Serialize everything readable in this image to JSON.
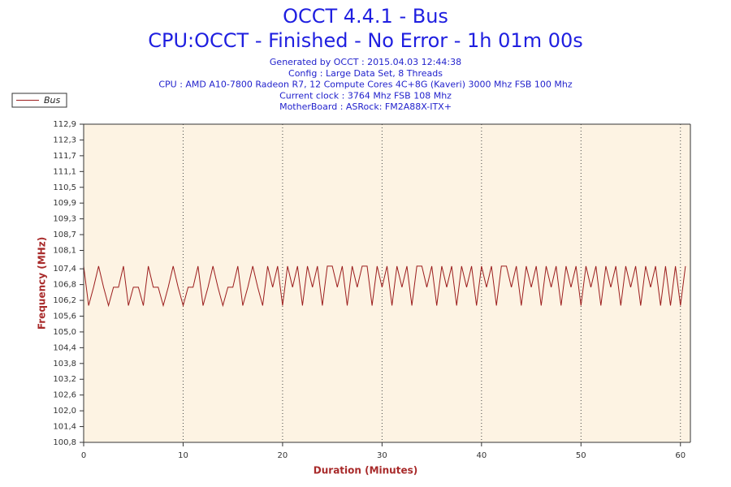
{
  "chart_data": {
    "type": "line",
    "title": "OCCT 4.4.1 - Bus",
    "subtitle": "CPU:OCCT - Finished - No Error - 1h 01m 00s",
    "info": [
      "Generated by OCCT : 2015.04.03 12:44:38",
      "Config : Large Data Set, 8 Threads",
      "CPU : AMD A10-7800 Radeon R7, 12 Compute Cores 4C+8G (Kaveri) 3000 Mhz FSB 100 Mhz",
      "Current clock : 3764 Mhz FSB 108 Mhz",
      "MotherBoard : ASRock: FM2A88X-ITX+"
    ],
    "x_label": "Duration (Minutes)",
    "y_label": "Frequency (MHz)",
    "xlim": [
      0,
      61
    ],
    "ylim": [
      100.8,
      112.9
    ],
    "xticks": [
      0,
      10,
      20,
      30,
      40,
      50,
      60
    ],
    "yticks": [
      {
        "value": 100.8,
        "label": "100,8"
      },
      {
        "value": 101.4,
        "label": "101,4"
      },
      {
        "value": 102.0,
        "label": "102,0"
      },
      {
        "value": 102.6,
        "label": "102,6"
      },
      {
        "value": 103.2,
        "label": "103,2"
      },
      {
        "value": 103.8,
        "label": "103,8"
      },
      {
        "value": 104.4,
        "label": "104,4"
      },
      {
        "value": 105.0,
        "label": "105,0"
      },
      {
        "value": 105.6,
        "label": "105,6"
      },
      {
        "value": 106.2,
        "label": "106,2"
      },
      {
        "value": 106.8,
        "label": "106,8"
      },
      {
        "value": 107.4,
        "label": "107,4"
      },
      {
        "value": 108.1,
        "label": "108,1"
      },
      {
        "value": 108.7,
        "label": "108,7"
      },
      {
        "value": 109.3,
        "label": "109,3"
      },
      {
        "value": 109.9,
        "label": "109,9"
      },
      {
        "value": 110.5,
        "label": "110,5"
      },
      {
        "value": 111.1,
        "label": "111,1"
      },
      {
        "value": 111.7,
        "label": "111,7"
      },
      {
        "value": 112.3,
        "label": "112,3"
      },
      {
        "value": 112.9,
        "label": "112,9"
      }
    ],
    "grid": true,
    "legend": "top-left",
    "x": [
      0,
      0.5,
      1,
      1.5,
      2,
      2.5,
      3,
      3.5,
      4,
      4.5,
      5,
      5.5,
      6,
      6.5,
      7,
      7.5,
      8,
      8.5,
      9,
      9.5,
      10,
      10.5,
      11,
      11.5,
      12,
      12.5,
      13,
      13.5,
      14,
      14.5,
      15,
      15.5,
      16,
      16.5,
      17,
      17.5,
      18,
      18.5,
      19,
      19.5,
      20,
      20.5,
      21,
      21.5,
      22,
      22.5,
      23,
      23.5,
      24,
      24.5,
      25,
      25.5,
      26,
      26.5,
      27,
      27.5,
      28,
      28.5,
      29,
      29.5,
      30,
      30.5,
      31,
      31.5,
      32,
      32.5,
      33,
      33.5,
      34,
      34.5,
      35,
      35.5,
      36,
      36.5,
      37,
      37.5,
      38,
      38.5,
      39,
      39.5,
      40,
      40.5,
      41,
      41.5,
      42,
      42.5,
      43,
      43.5,
      44,
      44.5,
      45,
      45.5,
      46,
      46.5,
      47,
      47.5,
      48,
      48.5,
      49,
      49.5,
      50,
      50.5,
      51,
      51.5,
      52,
      52.5,
      53,
      53.5,
      54,
      54.5,
      55,
      55.5,
      56,
      56.5,
      57,
      57.5,
      58,
      58.5,
      59,
      59.5,
      60,
      60.5
    ],
    "series": [
      {
        "name": "Bus",
        "color": "#9b1c1c",
        "values": [
          107.5,
          106.0,
          106.7,
          107.5,
          106.7,
          106.0,
          106.7,
          106.7,
          107.5,
          106.0,
          106.7,
          106.7,
          106.0,
          107.5,
          106.7,
          106.7,
          106.0,
          106.7,
          107.5,
          106.7,
          106.0,
          106.7,
          106.7,
          107.5,
          106.0,
          106.7,
          107.5,
          106.7,
          106.0,
          106.7,
          106.7,
          107.5,
          106.0,
          106.7,
          107.5,
          106.7,
          106.0,
          107.5,
          106.7,
          107.5,
          106.0,
          107.5,
          106.7,
          107.5,
          106.0,
          107.5,
          106.7,
          107.5,
          106.0,
          107.5,
          107.5,
          106.7,
          107.5,
          106.0,
          107.5,
          106.7,
          107.5,
          107.5,
          106.0,
          107.5,
          106.7,
          107.5,
          106.0,
          107.5,
          106.7,
          107.5,
          106.0,
          107.5,
          107.5,
          106.7,
          107.5,
          106.0,
          107.5,
          106.7,
          107.5,
          106.0,
          107.5,
          106.7,
          107.5,
          106.0,
          107.5,
          106.7,
          107.5,
          106.0,
          107.5,
          107.5,
          106.7,
          107.5,
          106.0,
          107.5,
          106.7,
          107.5,
          106.0,
          107.5,
          106.7,
          107.5,
          106.0,
          107.5,
          106.7,
          107.5,
          106.0,
          107.5,
          106.7,
          107.5,
          106.0,
          107.5,
          106.7,
          107.5,
          106.0,
          107.5,
          106.7,
          107.5,
          106.0,
          107.5,
          106.7,
          107.5,
          106.0,
          107.5,
          106.0,
          107.5,
          106.0,
          107.5
        ]
      }
    ]
  }
}
